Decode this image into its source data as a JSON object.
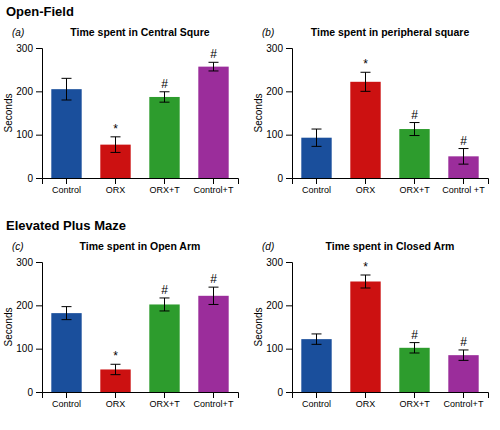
{
  "chart_data": [
    {
      "type": "bar",
      "subtitle": "Open-Field",
      "panel_label": "(a)",
      "title": "Time spent in Central Squre",
      "categories": [
        "Control",
        "ORX",
        "ORX+T",
        "Control+T"
      ],
      "values": [
        205,
        77,
        187,
        257
      ],
      "errors": [
        25,
        18,
        12,
        10
      ],
      "significance": [
        null,
        "*",
        "#",
        "#"
      ],
      "colors": [
        "#1a4f9c",
        "#cc1111",
        "#2d9c2d",
        "#9b2d9b"
      ],
      "ylabel": "Seconds",
      "ylim": [
        0,
        300
      ],
      "yticks": [
        0,
        100,
        200,
        300
      ],
      "grid": false
    },
    {
      "type": "bar",
      "panel_label": "(b)",
      "title": "Time spent in peripheral square",
      "categories": [
        "Control",
        "ORX",
        "ORX+T",
        "Control +T"
      ],
      "values": [
        93,
        222,
        113,
        50
      ],
      "errors": [
        20,
        22,
        15,
        18
      ],
      "significance": [
        null,
        "*",
        "#",
        "#"
      ],
      "colors": [
        "#1a4f9c",
        "#cc1111",
        "#2d9c2d",
        "#9b2d9b"
      ],
      "ylabel": "Seconds",
      "ylim": [
        0,
        300
      ],
      "yticks": [
        0,
        100,
        200,
        300
      ],
      "grid": false
    },
    {
      "type": "bar",
      "subtitle": "Elevated Plus Maze",
      "panel_label": "(c)",
      "title": "Time spent in Open Arm",
      "categories": [
        "Control",
        "ORX",
        "ORX+T",
        "Control+T"
      ],
      "values": [
        182,
        52,
        202,
        222
      ],
      "errors": [
        15,
        12,
        15,
        20
      ],
      "significance": [
        null,
        "*",
        "#",
        "#"
      ],
      "colors": [
        "#1a4f9c",
        "#cc1111",
        "#2d9c2d",
        "#9b2d9b"
      ],
      "ylabel": "Seconds",
      "ylim": [
        0,
        300
      ],
      "yticks": [
        0,
        100,
        200,
        300
      ],
      "grid": false
    },
    {
      "type": "bar",
      "panel_label": "(d)",
      "title": "Time spent in Closed Arm",
      "categories": [
        "Control",
        "ORX",
        "ORX+T",
        "Control+T"
      ],
      "values": [
        122,
        255,
        102,
        85
      ],
      "errors": [
        12,
        15,
        12,
        12
      ],
      "significance": [
        null,
        "*",
        "#",
        "#"
      ],
      "colors": [
        "#1a4f9c",
        "#cc1111",
        "#2d9c2d",
        "#9b2d9b"
      ],
      "ylabel": "Seconds",
      "ylim": [
        0,
        300
      ],
      "yticks": [
        0,
        100,
        200,
        300
      ],
      "grid": false
    }
  ]
}
